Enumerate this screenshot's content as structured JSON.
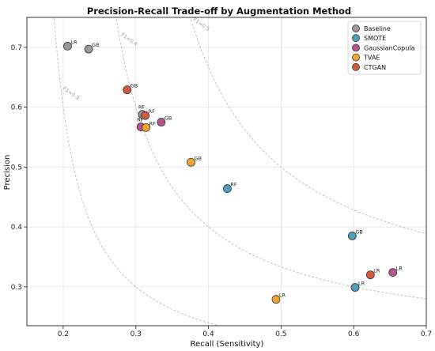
{
  "chart_data": {
    "type": "scatter",
    "title": "Precision-Recall Trade-off by Augmentation Method",
    "xlabel": "Recall (Sensitivity)",
    "ylabel": "Precision",
    "xlim": [
      0.15,
      0.7
    ],
    "ylim": [
      0.235,
      0.75
    ],
    "x_ticks": [
      "0.2",
      "0.3",
      "0.4",
      "0.5",
      "0.6",
      "0.7"
    ],
    "y_ticks": [
      "0.3",
      "0.4",
      "0.5",
      "0.6",
      "0.7"
    ],
    "grid": true,
    "legend_position": "top-right",
    "iso_f1_curves": [
      {
        "f1": 0.3,
        "label": "F1=0.3"
      },
      {
        "f1": 0.4,
        "label": "F1=0.4"
      },
      {
        "f1": 0.5,
        "label": "F1=0.5"
      }
    ],
    "series": [
      {
        "name": "Baseline",
        "color": "#999999",
        "points": [
          {
            "label": "LR",
            "x": 0.206,
            "y": 0.702
          },
          {
            "label": "GB",
            "x": 0.235,
            "y": 0.697
          },
          {
            "label": "RF",
            "x": 0.309,
            "y": 0.588
          }
        ]
      },
      {
        "name": "SMOTE",
        "color": "#4d9ec0",
        "points": [
          {
            "label": "RF",
            "x": 0.426,
            "y": 0.464
          },
          {
            "label": "GB",
            "x": 0.598,
            "y": 0.385
          },
          {
            "label": "LR",
            "x": 0.602,
            "y": 0.299
          }
        ]
      },
      {
        "name": "GaussianCopula",
        "color": "#b4568c",
        "points": [
          {
            "label": "RF",
            "x": 0.307,
            "y": 0.567
          },
          {
            "label": "GB",
            "x": 0.335,
            "y": 0.575
          },
          {
            "label": "LR",
            "x": 0.654,
            "y": 0.324
          }
        ]
      },
      {
        "name": "TVAE",
        "color": "#f5a52e",
        "points": [
          {
            "label": "RF",
            "x": 0.314,
            "y": 0.566
          },
          {
            "label": "GB",
            "x": 0.376,
            "y": 0.508
          },
          {
            "label": "LR",
            "x": 0.493,
            "y": 0.279
          }
        ]
      },
      {
        "name": "CTGAN",
        "color": "#d45a3e",
        "points": [
          {
            "label": "GB",
            "x": 0.288,
            "y": 0.629
          },
          {
            "label": "RF",
            "x": 0.313,
            "y": 0.586
          },
          {
            "label": "LR",
            "x": 0.623,
            "y": 0.32
          }
        ]
      }
    ]
  }
}
